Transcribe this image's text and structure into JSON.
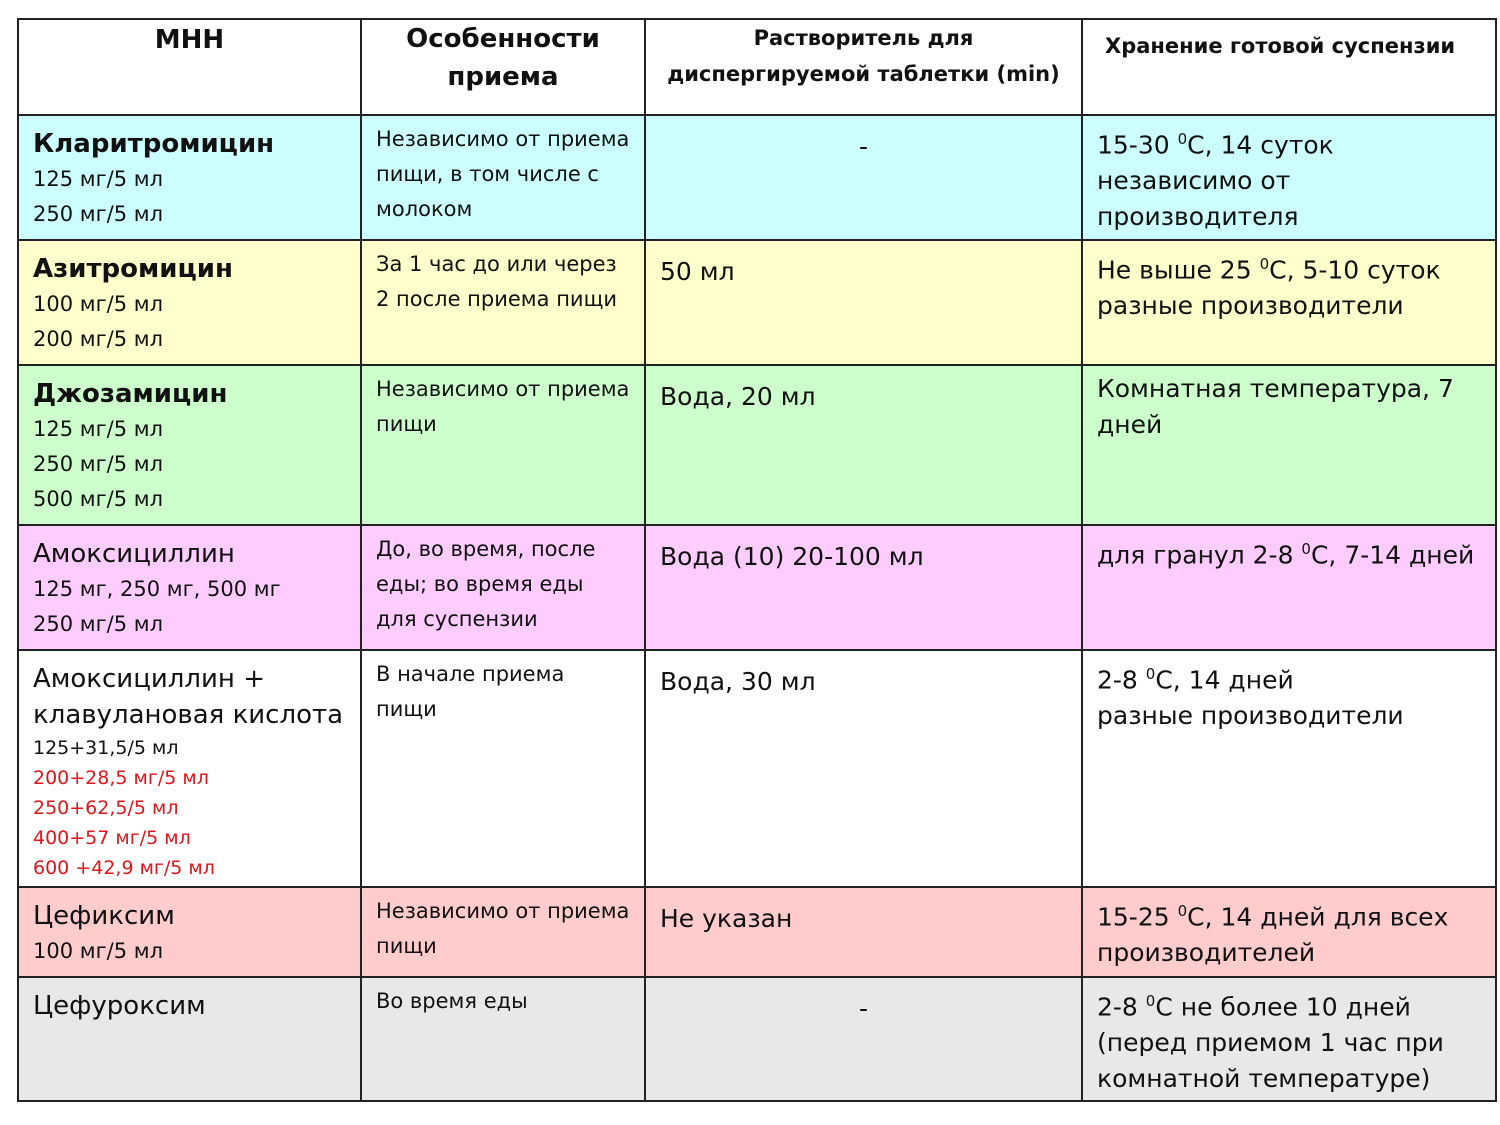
{
  "headers": {
    "inn": "МНН",
    "intake": "Особенности приема",
    "solvent": "Растворитель для диспергируемой таблетки (min)",
    "storage": "Хранение готовой суспензии"
  },
  "rows": [
    {
      "name": "Кларитромицин",
      "doses": [
        "125 мг/5 мл",
        "250 мг/5 мл"
      ],
      "intake": "Независимо от приема пищи, в том числе с молоком",
      "solvent": "-",
      "storage_parts": [
        "15-30 ",
        "0",
        "С, 14 суток\nнезависимо от производителя"
      ],
      "bg": "#ccffff"
    },
    {
      "name": "Азитромицин",
      "doses": [
        "100 мг/5 мл",
        "200 мг/5 мл"
      ],
      "intake": "За 1 час до или через 2 после приема пищи",
      "solvent": "50 мл",
      "storage_parts": [
        "Не выше 25 ",
        "0",
        "С, 5-10 суток\nразные производители"
      ],
      "bg": "#ffffcc"
    },
    {
      "name": "Джозамицин",
      "doses": [
        "125 мг/5 мл",
        "250 мг/5 мл",
        "500 мг/5 мл"
      ],
      "intake": "Независимо от приема пищи",
      "solvent": "Вода, 20 мл",
      "storage_parts": [
        "Комнатная температура, 7 дней",
        "",
        ""
      ],
      "bg": "#ccffcc"
    },
    {
      "name": "Амоксициллин",
      "doses": [
        "125 мг, 250 мг, 500 мг",
        "250 мг/5 мл"
      ],
      "intake": "До, во время, после еды; во время еды для суспензии",
      "solvent": "Вода (10) 20-100 мл",
      "storage_parts": [
        "для гранул 2-8 ",
        "0",
        "С, 7-14 дней"
      ],
      "bg": "#ffccff"
    },
    {
      "name": "Амоксициллин + клавулановая кислота",
      "doses": [
        "125+31,5/5 мл"
      ],
      "doses_red": [
        "200+28,5 мг/5 мл",
        "250+62,5/5 мл",
        "400+57 мг/5 мл",
        "600 +42,9 мг/5 мл"
      ],
      "intake": "В начале приема пищи",
      "solvent": "Вода, 30 мл",
      "storage_parts": [
        "2-8 ",
        "0",
        "С, 14 дней\nразные производители"
      ],
      "bg": "#ffffff"
    },
    {
      "name": "Цефиксим",
      "doses": [
        "100 мг/5 мл"
      ],
      "intake": "Независимо от приема пищи",
      "solvent": "Не указан",
      "storage_parts": [
        "15-25 ",
        "0",
        "С, 14 дней для всех производителей"
      ],
      "bg": "#ffcccc"
    },
    {
      "name": "Цефуроксим",
      "doses": [],
      "intake": "Во время еды",
      "solvent": "-",
      "storage_parts": [
        "2-8 ",
        "0",
        "С не более 10 дней\n(перед приемом 1 час при комнатной температуре)"
      ],
      "bg": "#e8e8e8"
    }
  ]
}
